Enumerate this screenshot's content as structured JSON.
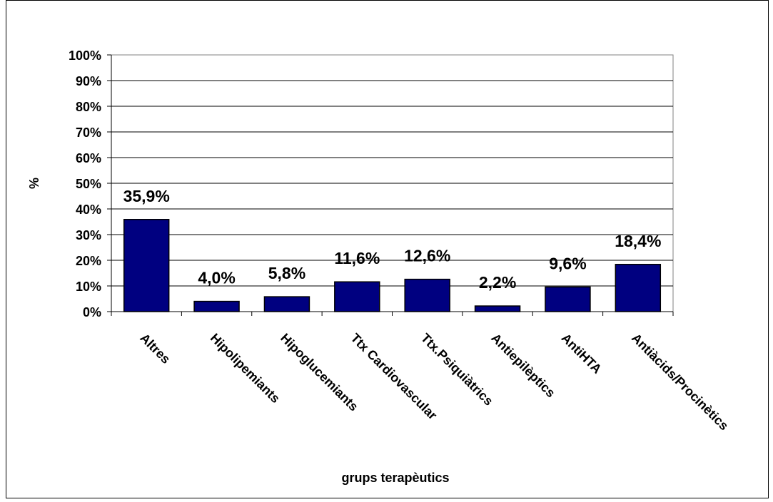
{
  "chart_data": {
    "type": "bar",
    "title": "",
    "xlabel": "grups terapèutics",
    "ylabel": "%",
    "categories": [
      "Altres",
      "Hipolipemiants",
      "Hipoglucemiants",
      "Ttx Cardiovascular",
      "Ttx.Psiquiàtrics",
      "Antiepilèptics",
      "AntiHTA",
      "Antiàcids/Procinètics"
    ],
    "values": [
      35.9,
      4.0,
      5.8,
      11.6,
      12.6,
      2.2,
      9.6,
      18.4
    ],
    "data_labels": [
      "35,9%",
      "4,0%",
      "5,8%",
      "11,6%",
      "12,6%",
      "2,2%",
      "9,6%",
      "18,4%"
    ],
    "ylim": [
      0,
      100
    ],
    "yticks": [
      "0%",
      "10%",
      "20%",
      "30%",
      "40%",
      "50%",
      "60%",
      "70%",
      "80%",
      "90%",
      "100%"
    ],
    "grid": true,
    "legend": "none",
    "bar_color": "#000080"
  }
}
